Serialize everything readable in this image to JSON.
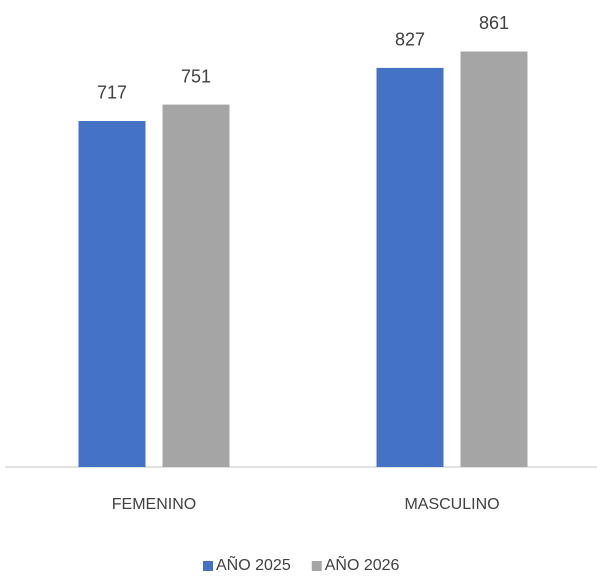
{
  "chart_data": {
    "type": "bar",
    "categories": [
      "FEMENINO",
      "MASCULINO"
    ],
    "series": [
      {
        "name": "AÑO 2025",
        "color": "#4472c4",
        "values": [
          717,
          827
        ]
      },
      {
        "name": "AÑO 2026",
        "color": "#a5a5a5",
        "values": [
          751,
          861
        ]
      }
    ],
    "legend": "bottom"
  }
}
